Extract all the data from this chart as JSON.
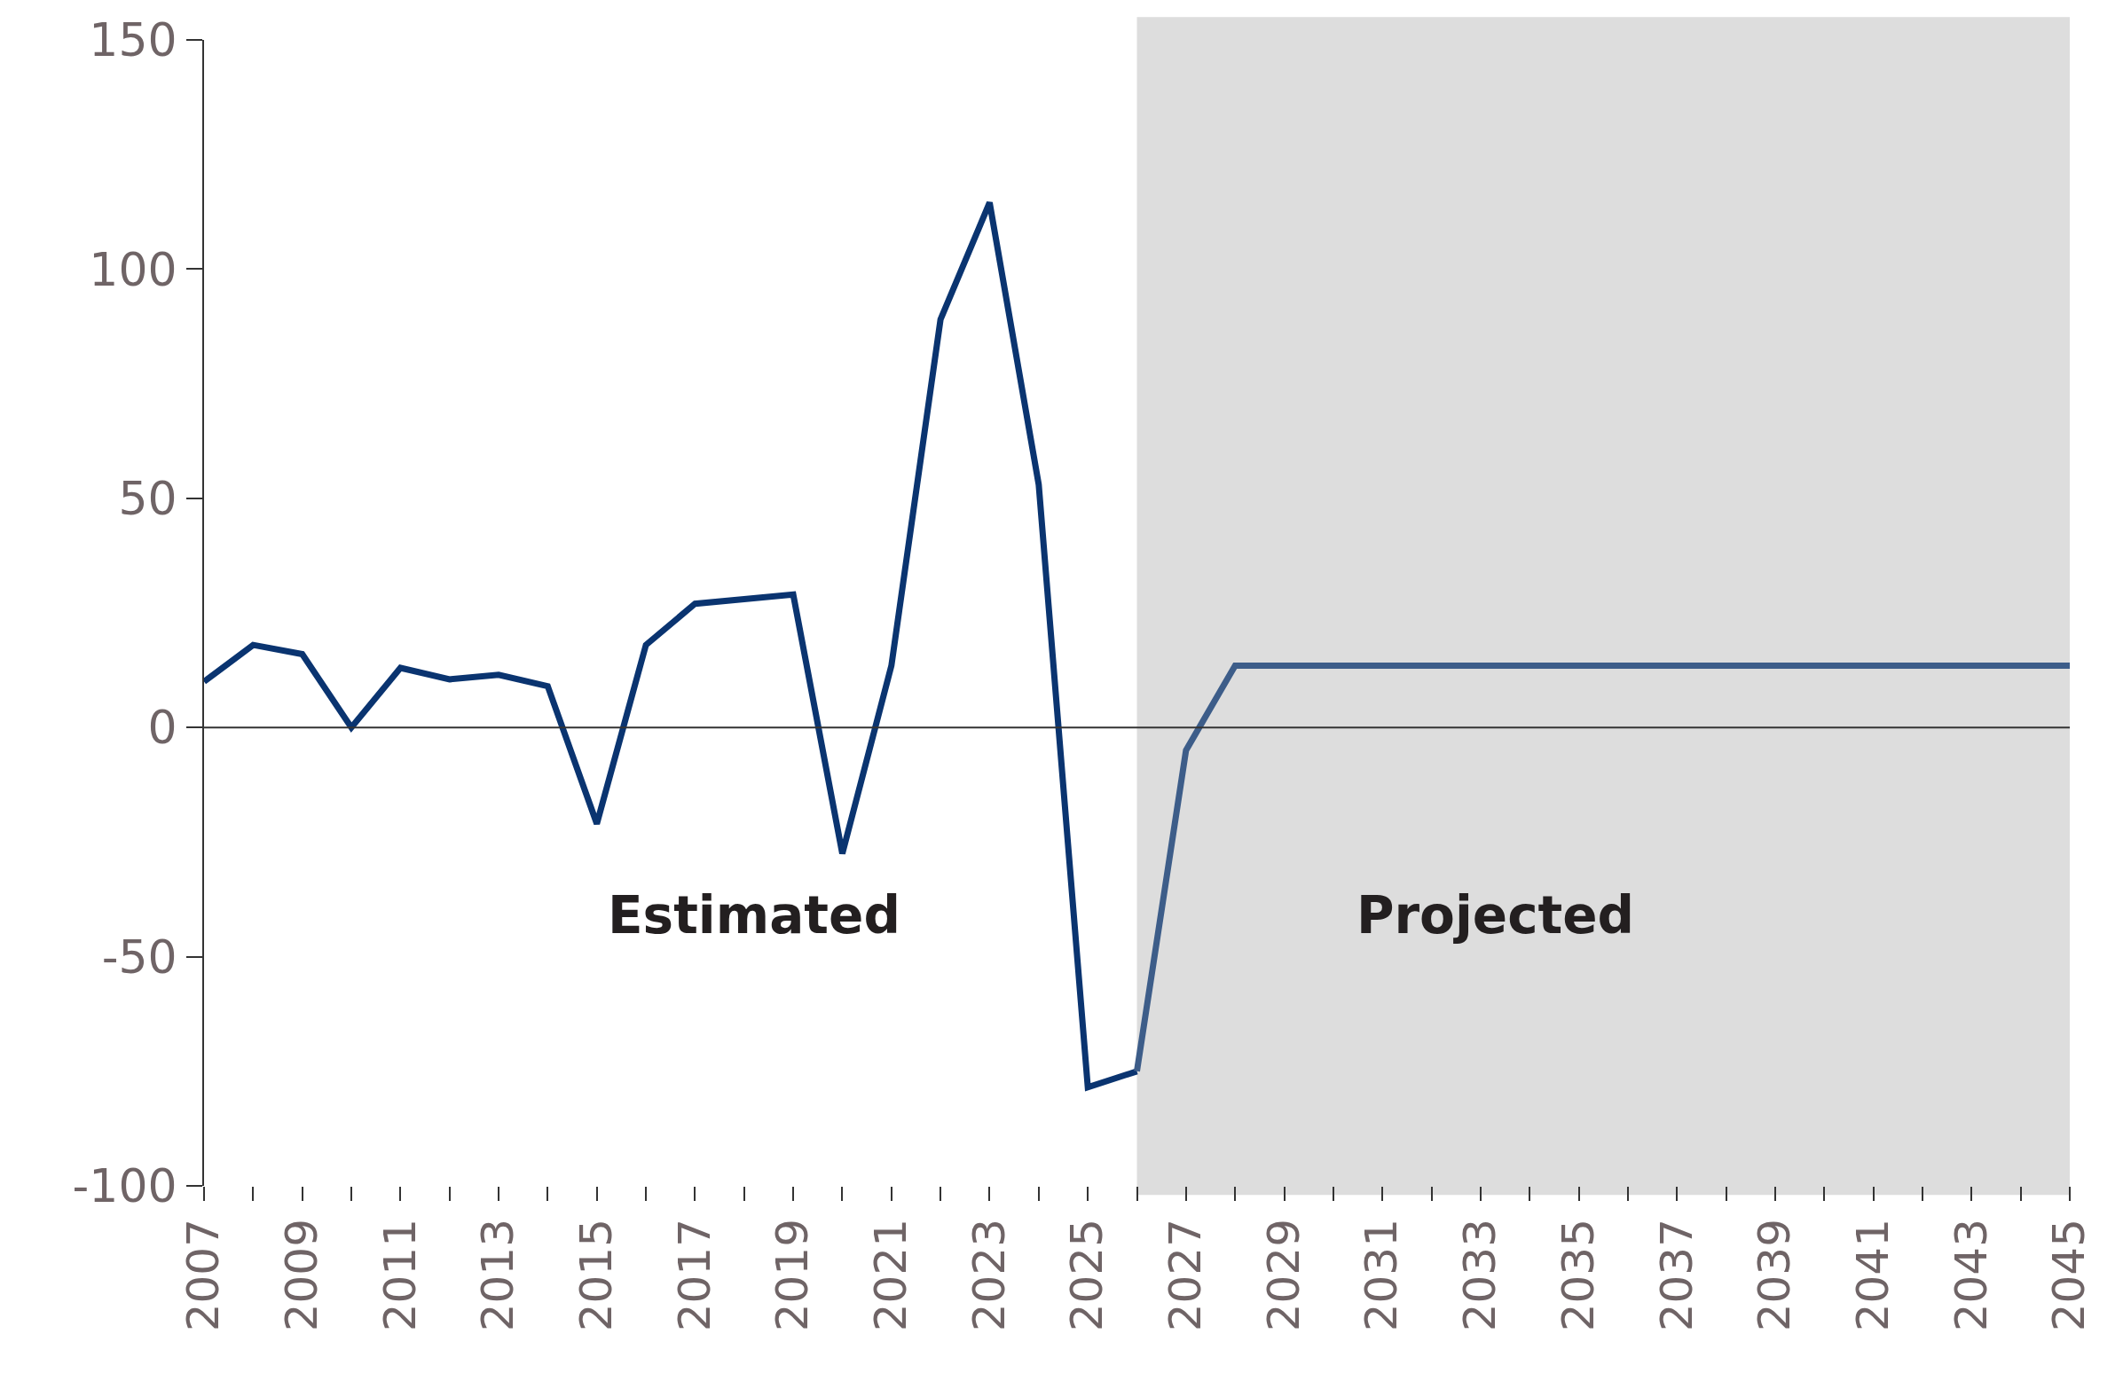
{
  "chart_data": {
    "type": "line",
    "series": [
      {
        "color": "#0a3470",
        "x": [
          2007,
          2008,
          2009,
          2010,
          2011,
          2012,
          2013,
          2014,
          2015,
          2016,
          2017,
          2018,
          2019,
          2020,
          2021,
          2022,
          2023,
          2024,
          2025,
          2026
        ],
        "values": [
          10,
          18,
          16,
          0,
          13,
          10.5,
          11.5,
          9,
          -21,
          18,
          27,
          28,
          29,
          -27.5,
          13.5,
          89,
          114.5,
          53,
          -78.5,
          -75
        ]
      },
      {
        "color": "#3d5d89",
        "x": [
          2026,
          2027,
          2028,
          2029,
          2030,
          2031,
          2032,
          2033,
          2034,
          2035,
          2036,
          2037,
          2038,
          2039,
          2040,
          2041,
          2042,
          2043,
          2044,
          2045
        ],
        "values": [
          -75,
          -5,
          13.5,
          13.5,
          13.5,
          13.5,
          13.5,
          13.5,
          13.5,
          13.5,
          13.5,
          13.5,
          13.5,
          13.5,
          13.5,
          13.5,
          13.5,
          13.5,
          13.5,
          13.5
        ]
      }
    ],
    "xlim": [
      2007,
      2045
    ],
    "xticks": [
      2007,
      {
        "value": 2008,
        "label": null
      },
      2009,
      {
        "value": 2010,
        "label": null
      },
      2011,
      {
        "value": 2012,
        "label": null
      },
      2013,
      {
        "value": 2014,
        "label": null
      },
      2015,
      {
        "value": 2016,
        "label": null
      },
      2017,
      {
        "value": 2018,
        "label": null
      },
      2019,
      {
        "value": 2020,
        "label": null
      },
      2021,
      {
        "value": 2022,
        "label": null
      },
      2023,
      {
        "value": 2024,
        "label": null
      },
      2025,
      {
        "value": 2026,
        "label": null
      },
      2027,
      {
        "value": 2028,
        "label": null
      },
      2029,
      {
        "value": 2030,
        "label": null
      },
      2031,
      {
        "value": 2032,
        "label": null
      },
      2033,
      {
        "value": 2034,
        "label": null
      },
      2035,
      {
        "value": 2036,
        "label": null
      },
      2037,
      {
        "value": 2038,
        "label": null
      },
      2039,
      {
        "value": 2040,
        "label": null
      },
      2041,
      {
        "value": 2042,
        "label": null
      },
      2043,
      {
        "value": 2044,
        "label": null
      },
      2045
    ],
    "ylim": [
      -100,
      150
    ],
    "yticks": [
      -100,
      -50,
      0,
      50,
      100,
      150
    ],
    "ref_lines": [
      {
        "axis": "y",
        "value": 0
      }
    ],
    "bands": [
      {
        "axis": "x",
        "from": 2026,
        "to": 2045,
        "color": "#dddddd"
      }
    ],
    "annotations": [
      "Estimated",
      "Projected"
    ],
    "grid": false,
    "marker": "none",
    "line_style": "solid"
  }
}
